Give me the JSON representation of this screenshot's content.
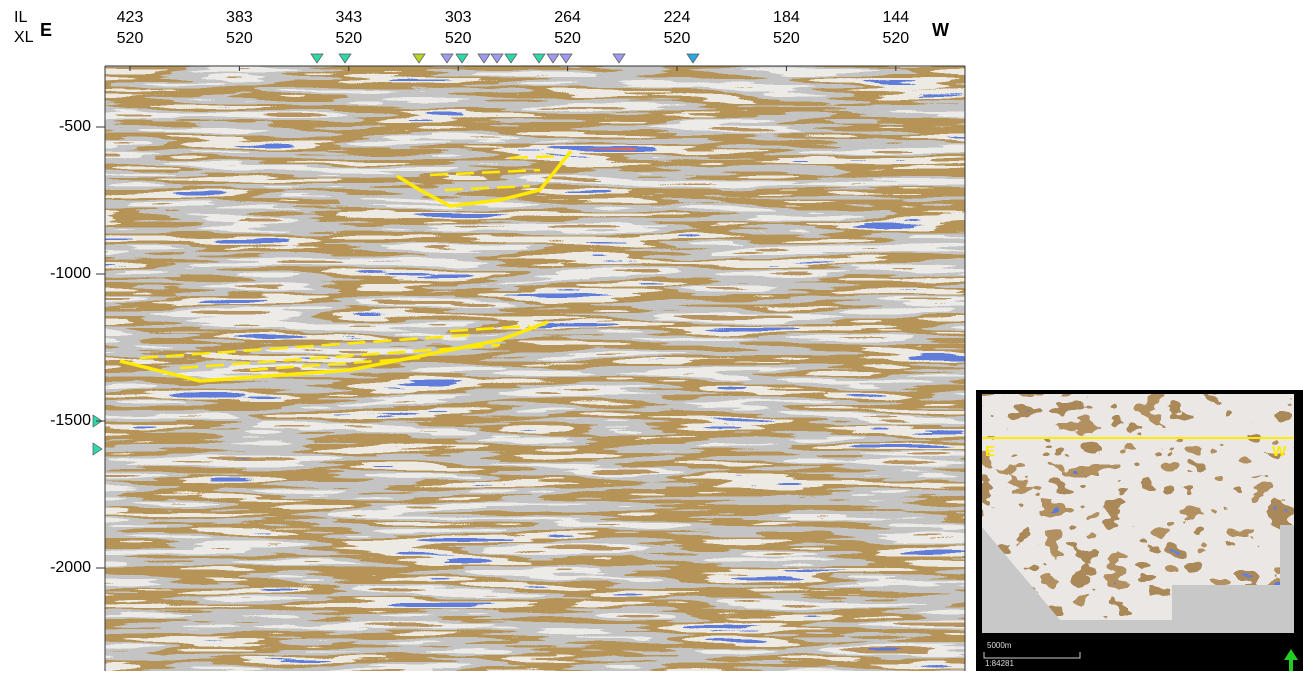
{
  "header": {
    "il_label": "IL",
    "xl_label": "XL",
    "east": "E",
    "west": "W"
  },
  "traces": [
    {
      "il": "423",
      "xl": "520"
    },
    {
      "il": "383",
      "xl": "520"
    },
    {
      "il": "343",
      "xl": "520"
    },
    {
      "il": "303",
      "xl": "520"
    },
    {
      "il": "264",
      "xl": "520"
    },
    {
      "il": "224",
      "xl": "520"
    },
    {
      "il": "184",
      "xl": "520"
    },
    {
      "il": "144",
      "xl": "520"
    }
  ],
  "depth_ticks": [
    "-500",
    "-1000",
    "-1500",
    "-2000"
  ],
  "map": {
    "east": "E",
    "west": "W",
    "scale": "5000m",
    "ratio": "1:84281"
  }
}
